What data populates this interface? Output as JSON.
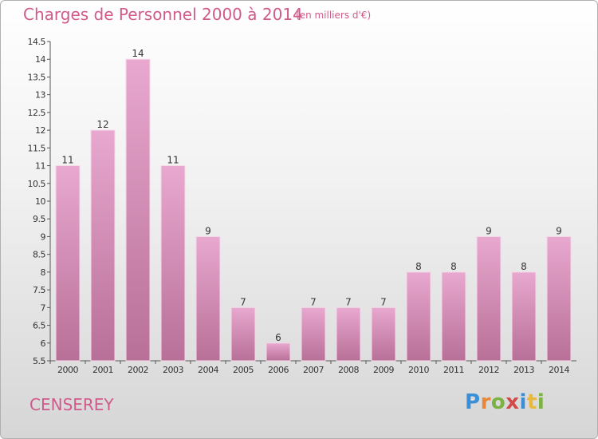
{
  "header": {
    "title": "Charges de Personnel 2000 à 2014",
    "subtitle": "(en milliers d'€)"
  },
  "commune": "CENSEREY",
  "logo": {
    "letters": [
      "P",
      "r",
      "o",
      "x",
      "i",
      "t",
      "i"
    ]
  },
  "colors": {
    "bar_top": "#e8a8cf",
    "bar_bottom": "#b87098",
    "title": "#d05a8a",
    "axis": "#555555"
  },
  "chart_data": {
    "type": "bar",
    "title": "Charges de Personnel 2000 à 2014",
    "subtitle": "(en milliers d'€)",
    "categories": [
      "2000",
      "2001",
      "2002",
      "2003",
      "2004",
      "2005",
      "2006",
      "2007",
      "2008",
      "2009",
      "2010",
      "2011",
      "2012",
      "2013",
      "2014"
    ],
    "values": [
      11,
      12,
      14,
      11,
      9,
      7,
      6,
      7,
      7,
      7,
      8,
      8,
      9,
      8,
      9
    ],
    "ylim": [
      5.5,
      14.5
    ],
    "yticks": [
      "5.5",
      "6",
      "6.5",
      "7",
      "7.5",
      "8",
      "8.5",
      "9",
      "9.5",
      "10",
      "10.5",
      "11",
      "11.5",
      "12",
      "12.5",
      "13",
      "13.5",
      "14",
      "14.5"
    ],
    "grid": false,
    "xlabel": "",
    "ylabel": ""
  }
}
